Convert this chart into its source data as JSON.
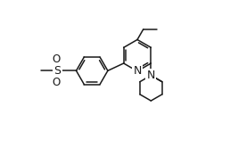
{
  "bg_color": "#ffffff",
  "line_color": "#1a1a1a",
  "lw": 1.1,
  "figsize": [
    2.58,
    1.66
  ],
  "dpi": 100,
  "xlim": [
    -1.0,
    9.5
  ],
  "ylim": [
    -0.5,
    6.0
  ]
}
